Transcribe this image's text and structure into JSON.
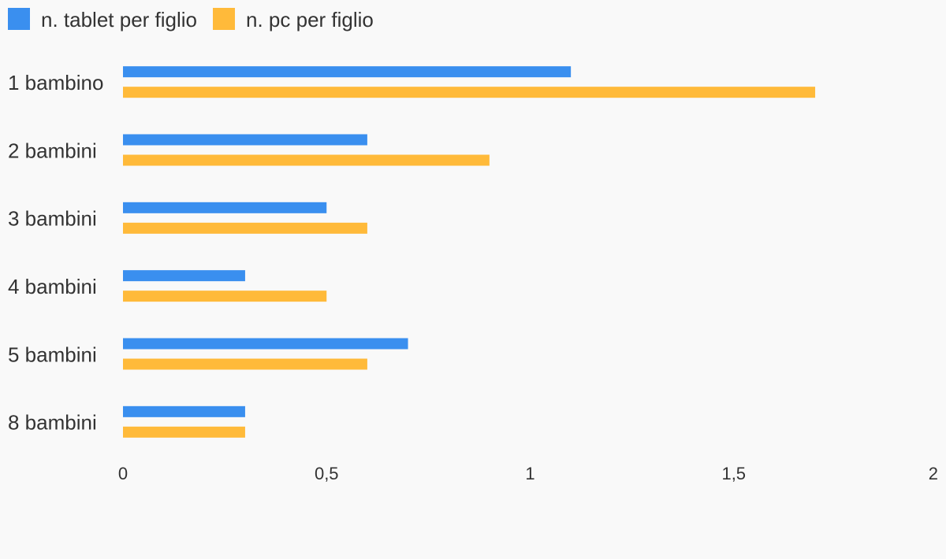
{
  "chart_data": {
    "type": "hbar",
    "categories": [
      "1 bambino",
      "2 bambini",
      "3 bambini",
      "4 bambini",
      "5 bambini",
      "8 bambini"
    ],
    "series": [
      {
        "name": "n. tablet per figlio",
        "color": "#3a8fef",
        "values": [
          1.1,
          0.6,
          0.5,
          0.3,
          0.7,
          0.3
        ]
      },
      {
        "name": "n. pc per figlio",
        "color": "#ffba3a",
        "values": [
          1.7,
          0.9,
          0.6,
          0.5,
          0.6,
          0.3
        ]
      }
    ],
    "xlim": [
      0,
      2
    ],
    "xticks": [
      0,
      {
        "value": 0.5,
        "label": "0,5"
      },
      1,
      {
        "value": 1.5,
        "label": "1,5"
      },
      2
    ],
    "legend": "top-left",
    "grid": false
  }
}
